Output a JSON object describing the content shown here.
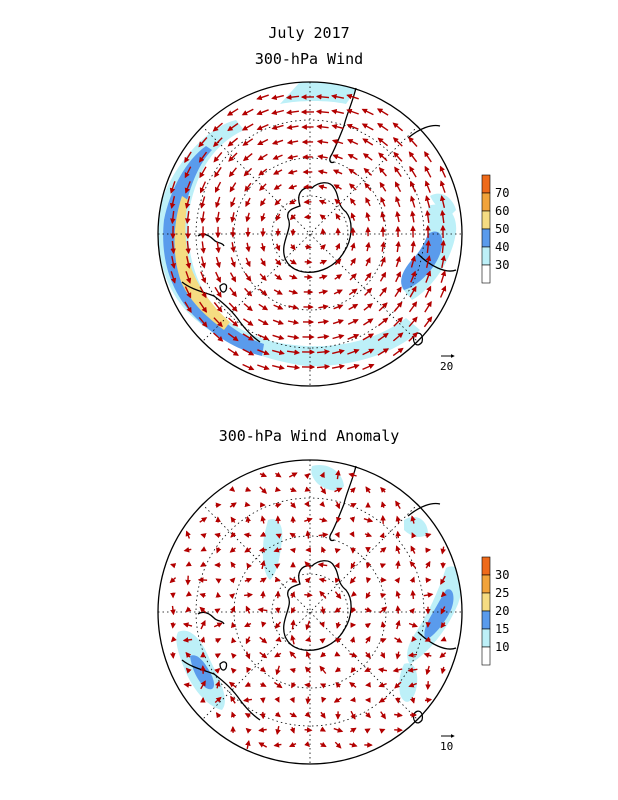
{
  "figure": {
    "title": "July 2017"
  },
  "panels": [
    {
      "id": "wind",
      "title": "300-hPa Wind",
      "colorbar": {
        "labels": [
          "70",
          "60",
          "50",
          "40",
          "30"
        ],
        "colors": [
          "#ffffff",
          "#bdf0f8",
          "#5a9bec",
          "#f5dc82",
          "#f1a33a",
          "#ee6a1a"
        ]
      },
      "reference_vector": "20",
      "vector_color": "#b30000"
    },
    {
      "id": "anomaly",
      "title": "300-hPa Wind Anomaly",
      "colorbar": {
        "labels": [
          "30",
          "25",
          "20",
          "15",
          "10"
        ],
        "colors": [
          "#ffffff",
          "#bdf0f8",
          "#5a9bec",
          "#f5dc82",
          "#f1a33a",
          "#ee6a1a"
        ]
      },
      "reference_vector": "10",
      "vector_color": "#b30000"
    }
  ]
}
